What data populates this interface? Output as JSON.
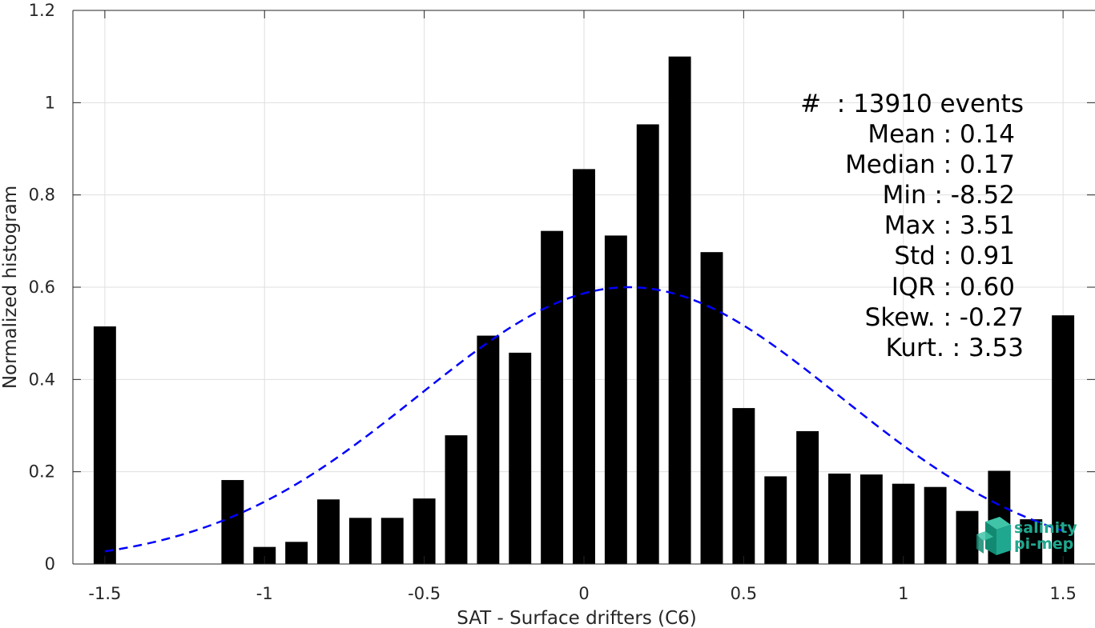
{
  "chart_data": {
    "type": "bar",
    "xlabel": "SAT - Surface drifters (C6)",
    "ylabel": "Normalized histogram",
    "xlim": [
      -1.6,
      1.6
    ],
    "ylim": [
      0,
      1.2
    ],
    "grid": true,
    "xticks": [
      -1.5,
      -1,
      -0.5,
      0,
      0.5,
      1,
      1.5
    ],
    "xtick_labels": [
      "-1.5",
      "-1",
      "-0.5",
      "0",
      "0.5",
      "1",
      "1.5"
    ],
    "yticks": [
      0,
      0.2,
      0.4,
      0.6,
      0.8,
      1,
      1.2
    ],
    "ytick_labels": [
      "0",
      "0.2",
      "0.4",
      "0.6",
      "0.8",
      "1",
      "1.2"
    ],
    "bar_color": "#000000",
    "bars": {
      "x": [
        -1.5,
        -1.4,
        -1.3,
        -1.2,
        -1.1,
        -1.0,
        -0.9,
        -0.8,
        -0.7,
        -0.6,
        -0.5,
        -0.4,
        -0.3,
        -0.2,
        -0.1,
        0.0,
        0.1,
        0.2,
        0.3,
        0.4,
        0.5,
        0.6,
        0.7,
        0.8,
        0.9,
        1.0,
        1.1,
        1.2,
        1.3,
        1.4,
        1.5
      ],
      "values": [
        0.515,
        0,
        0,
        0,
        0.182,
        0.037,
        0.048,
        0.14,
        0.1,
        0.1,
        0.142,
        0.279,
        0.495,
        0.458,
        0.722,
        0.856,
        0.712,
        0.953,
        1.1,
        0.676,
        0.338,
        0.19,
        0.288,
        0.196,
        0.194,
        0.174,
        0.167,
        0.115,
        0.202,
        0.097,
        0.539
      ]
    },
    "fit_curve": {
      "type": "gaussian",
      "color": "#0000ff",
      "style": "dashed",
      "mean": 0.14,
      "std": 0.66,
      "peak": 0.6,
      "x_range": [
        -1.5,
        1.5
      ]
    },
    "stats": {
      "count": "#  : 13910 events",
      "lines": [
        "Mean : 0.14",
        "Median : 0.17",
        "Min : -8.52",
        "Max : 3.51",
        "Std : 0.91",
        "IQR : 0.60",
        "Skew. : -0.27",
        "Kurt. : 3.53"
      ]
    }
  },
  "logo": {
    "line1": "salinity",
    "line2": "pi-mep",
    "color": "#1fa88f"
  }
}
